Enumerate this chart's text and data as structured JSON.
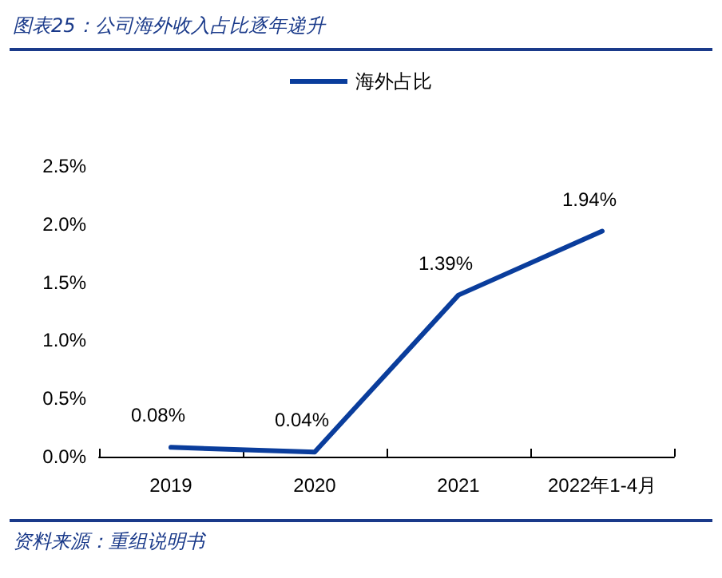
{
  "chart_data": {
    "type": "line",
    "title": "图表25：公司海外收入占比逐年递升",
    "categories": [
      "2019",
      "2020",
      "2021",
      "2022年1-4月"
    ],
    "series": [
      {
        "name": "海外占比",
        "color": "#0a3d9c",
        "values": [
          0.08,
          0.04,
          1.39,
          1.94
        ],
        "value_labels": [
          "0.08%",
          "0.04%",
          "1.39%",
          "1.94%"
        ]
      }
    ],
    "ylim": [
      0,
      2.5
    ],
    "yticks": [
      {
        "value": 0,
        "label": "0.0%"
      },
      {
        "value": 0.5,
        "label": "0.5%"
      },
      {
        "value": 1,
        "label": "1.0%"
      },
      {
        "value": 1.5,
        "label": "1.5%"
      },
      {
        "value": 2,
        "label": "2.0%"
      },
      {
        "value": 2.5,
        "label": "2.5%"
      }
    ],
    "grid": false,
    "legend": "top",
    "marker": "none",
    "line_style": "solid",
    "annotations": [
      "资料来源：重组说明书"
    ]
  }
}
